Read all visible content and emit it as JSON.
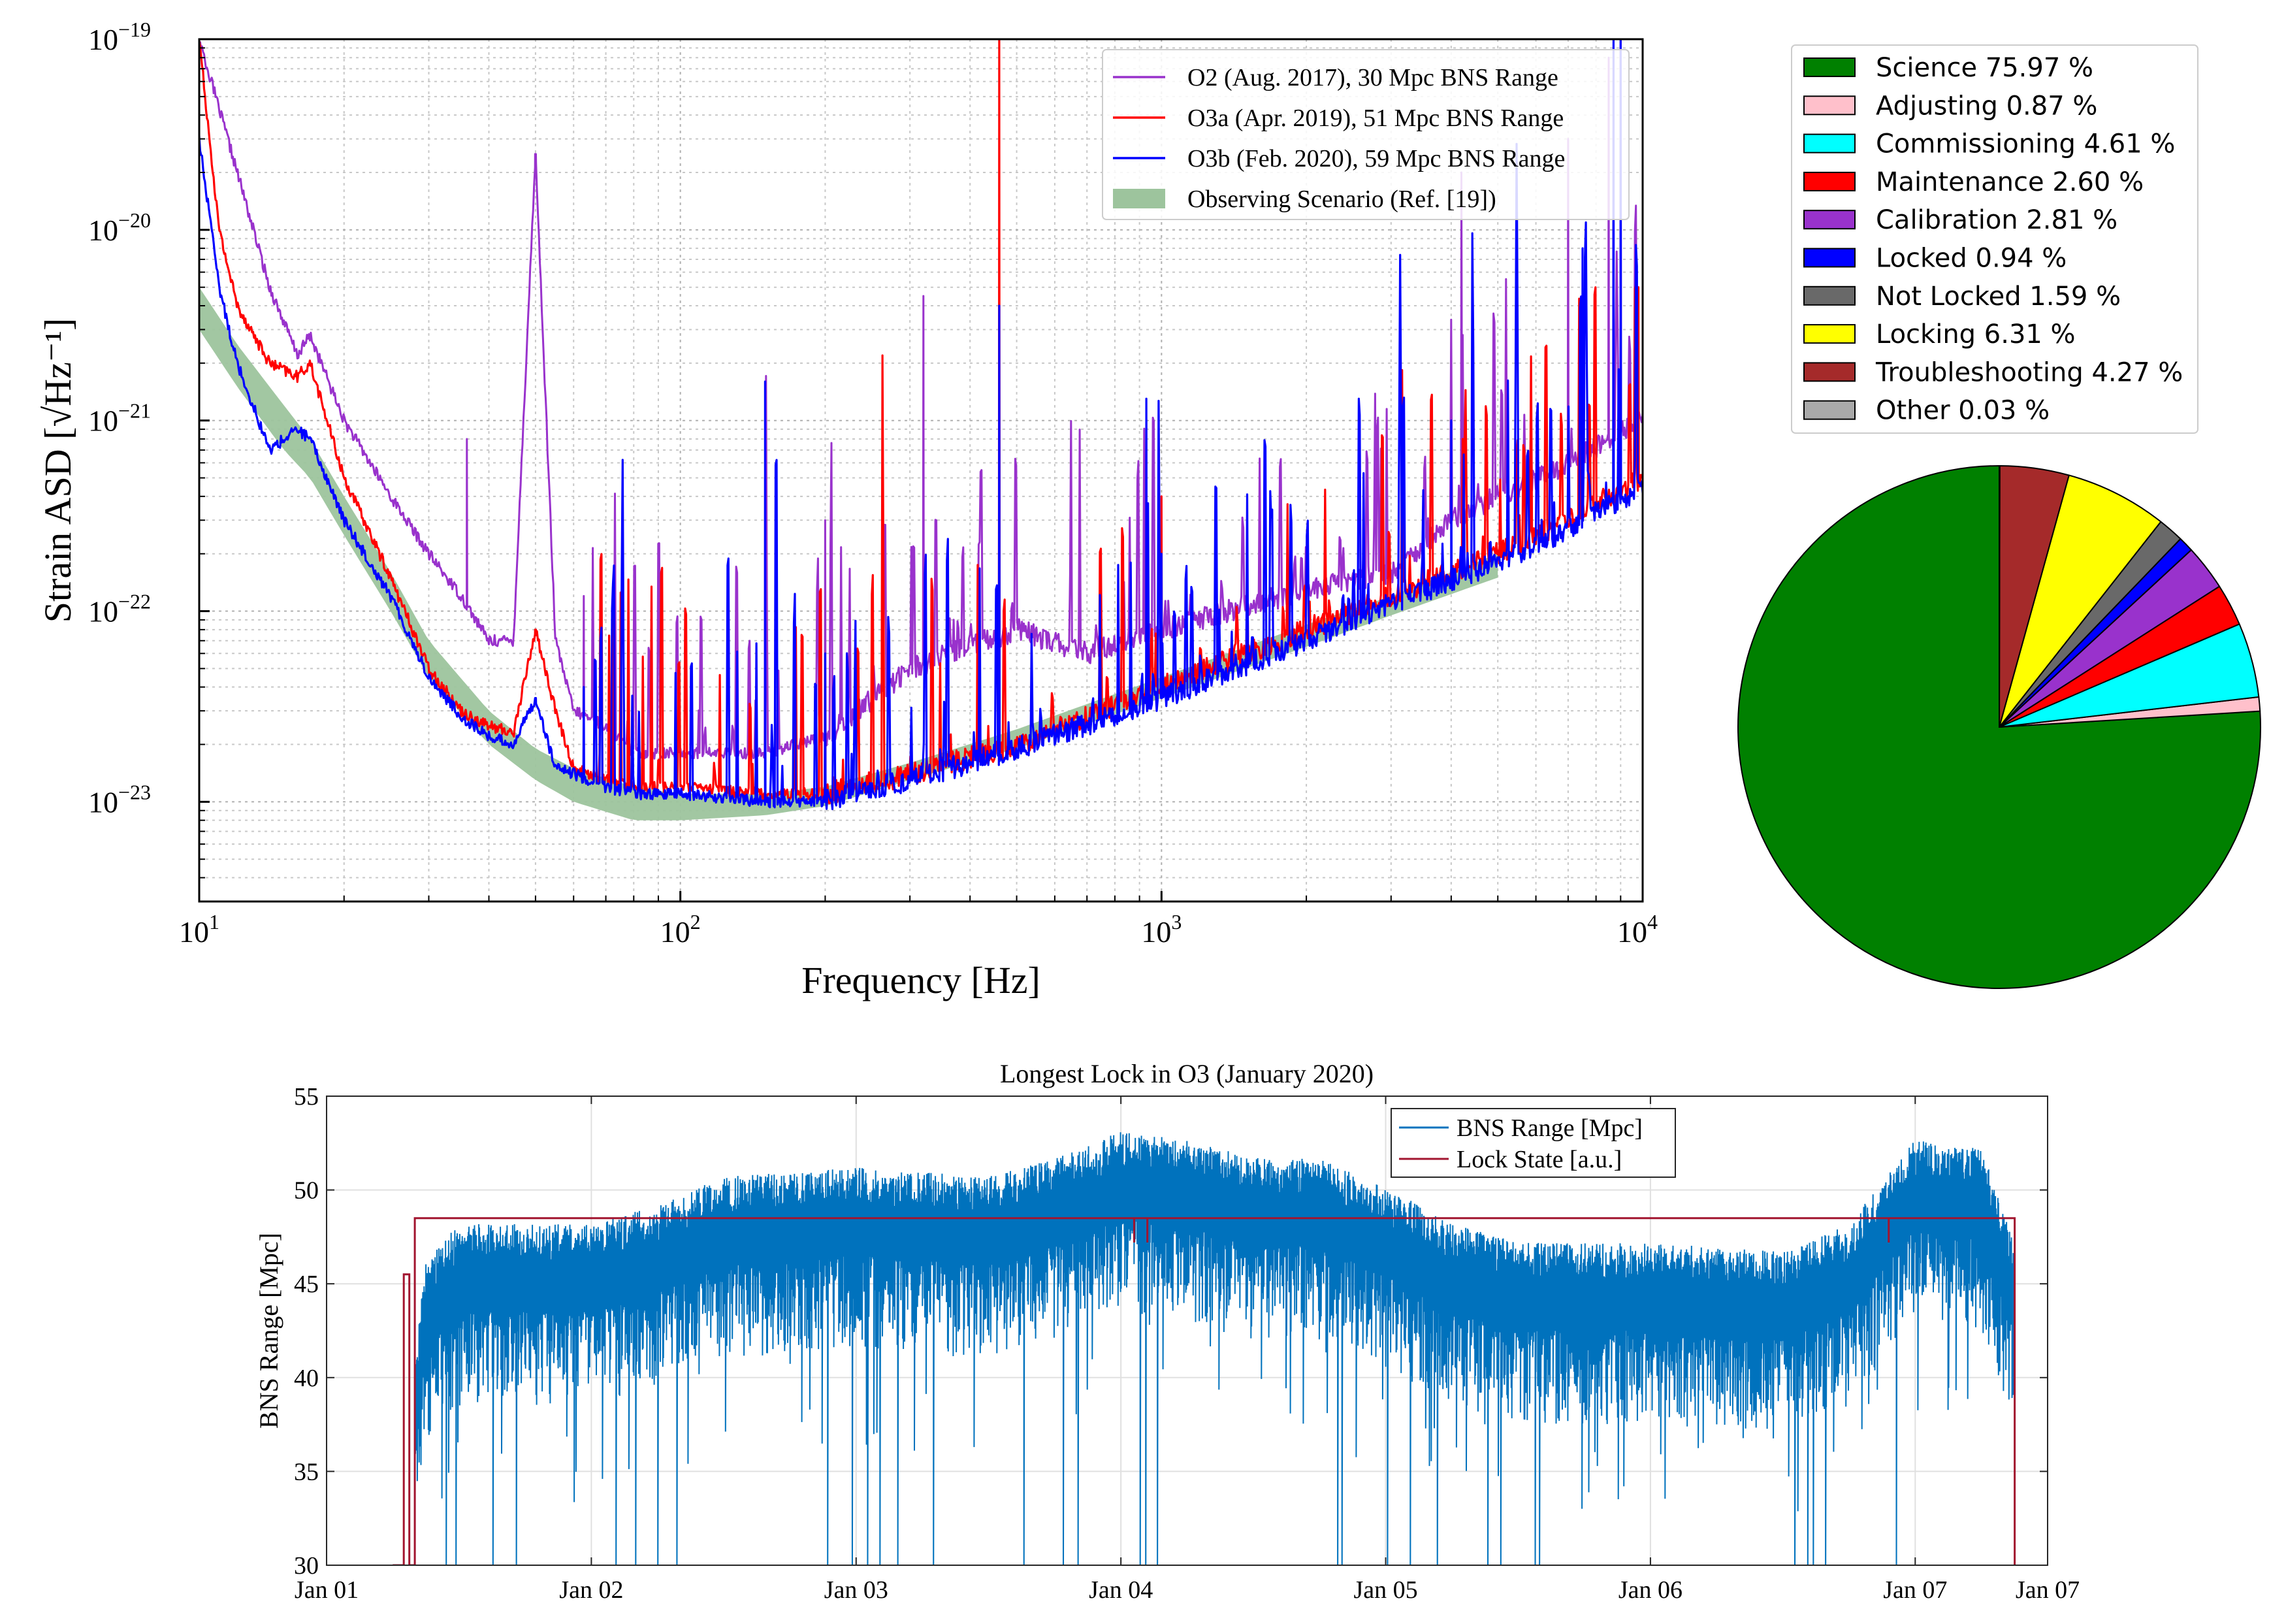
{
  "charts": [
    {
      "type": "line",
      "xlabel": "Frequency [Hz]",
      "ylabel": "Strain ASD [√Hz⁻¹]",
      "xscale": "log",
      "yscale": "log",
      "xlim": [
        10,
        10000
      ],
      "ylim": [
        3e-24,
        1e-19
      ],
      "xticks": [
        {
          "value": 10,
          "base": "10",
          "exp": "1"
        },
        {
          "value": 100,
          "base": "10",
          "exp": "2"
        },
        {
          "value": 1000,
          "base": "10",
          "exp": "3"
        },
        {
          "value": 10000,
          "base": "10",
          "exp": "4"
        }
      ],
      "yticks": [
        {
          "value": 1e-23,
          "base": "10",
          "exp": "−23"
        },
        {
          "value": 1e-22,
          "base": "10",
          "exp": "−22"
        },
        {
          "value": 1e-21,
          "base": "10",
          "exp": "−21"
        },
        {
          "value": 1e-20,
          "base": "10",
          "exp": "−20"
        },
        {
          "value": 1e-19,
          "base": "10",
          "exp": "−19"
        }
      ],
      "grid": true,
      "legend_position": "top-right",
      "series": [
        {
          "name": "O2 (Aug. 2017), 30 Mpc BNS Range",
          "color": "#9932cc",
          "x": [
            10,
            12,
            14,
            16,
            17,
            20,
            25,
            30,
            35,
            40,
            45,
            50,
            55,
            60,
            70,
            80,
            100,
            150,
            200,
            300,
            500,
            700,
            1000,
            2000,
            3000,
            4000,
            5000,
            7000,
            10000
          ],
          "y": [
            1e-19,
            2e-20,
            5e-21,
            2.2e-21,
            2.8e-21,
            1e-21,
            4e-22,
            2e-22,
            1.2e-22,
            7e-23,
            7e-23,
            2.5e-20,
            7e-23,
            3e-23,
            2.5e-23,
            1.8e-23,
            1.8e-23,
            1.8e-23,
            2.2e-23,
            5e-23,
            8e-23,
            6e-23,
            8e-23,
            1.3e-22,
            1.6e-22,
            3e-22,
            4e-22,
            6e-22,
            1e-21
          ]
        },
        {
          "name": "O3a (Apr. 2019), 51 Mpc BNS Range",
          "color": "#ff0000",
          "x": [
            10,
            11,
            12,
            14,
            16,
            17,
            20,
            25,
            30,
            35,
            40,
            45,
            50,
            55,
            60,
            70,
            80,
            100,
            150,
            200,
            300,
            500,
            1000,
            2000,
            3000,
            5000,
            7000,
            10000
          ],
          "y": [
            1e-19,
            1e-20,
            4e-21,
            2e-21,
            1.7e-21,
            2e-21,
            5e-22,
            1.5e-22,
            5e-23,
            3e-23,
            2.5e-23,
            2.3e-23,
            8e-23,
            3e-23,
            1.5e-23,
            1.3e-23,
            1.2e-23,
            1.2e-23,
            1.1e-23,
            1.1e-23,
            1.4e-23,
            2e-23,
            4e-23,
            8e-23,
            1.2e-22,
            2e-22,
            3e-22,
            5e-22
          ]
        },
        {
          "name": "O3b (Feb. 2020), 59 Mpc BNS Range",
          "color": "#0000ff",
          "x": [
            10,
            11,
            12,
            14,
            16,
            17,
            20,
            25,
            30,
            35,
            40,
            45,
            50,
            55,
            60,
            70,
            80,
            100,
            150,
            200,
            300,
            500,
            1000,
            2000,
            3000,
            5000,
            7000,
            10000
          ],
          "y": [
            3e-20,
            5e-21,
            2e-21,
            7e-22,
            9e-22,
            8e-22,
            3e-22,
            1.2e-22,
            4.5e-23,
            2.8e-23,
            2.2e-23,
            2e-23,
            3.5e-23,
            1.5e-23,
            1.4e-23,
            1.2e-23,
            1.1e-23,
            1.1e-23,
            1e-23,
            1e-23,
            1.3e-23,
            1.9e-23,
            3.5e-23,
            7e-23,
            1.1e-22,
            1.8e-22,
            2.7e-22,
            4.5e-22
          ]
        },
        {
          "name": "Observing Scenario (Ref. [19])",
          "color": "#9dc49d",
          "style": "band",
          "x": [
            10,
            12,
            15,
            17,
            20,
            25,
            30,
            40,
            50,
            60,
            80,
            100,
            150,
            200,
            300,
            500,
            1000,
            2000,
            3000,
            5000
          ],
          "y_low": [
            3e-21,
            1.5e-21,
            7e-22,
            5e-22,
            2.5e-22,
            1e-22,
            4.5e-23,
            2e-23,
            1.3e-23,
            1e-23,
            8e-24,
            8e-24,
            8.5e-24,
            9.5e-24,
            1.3e-23,
            1.9e-23,
            3.5e-23,
            6.5e-23,
            9.5e-23,
            1.5e-22
          ],
          "y_high": [
            5e-21,
            2.5e-21,
            1.2e-21,
            8e-22,
            4e-22,
            1.6e-22,
            7e-23,
            3e-23,
            1.9e-23,
            1.5e-23,
            1.2e-23,
            1.1e-23,
            1.1e-23,
            1.2e-23,
            1.6e-23,
            2.4e-23,
            4.5e-23,
            8.5e-23,
            1.2e-22,
            2e-22
          ]
        }
      ]
    },
    {
      "type": "pie",
      "legend_position": "top",
      "start_angle_deg": 90,
      "direction": "counterclockwise",
      "slices": [
        {
          "label": "Science 75.97 %",
          "value": 75.97,
          "color": "#008000"
        },
        {
          "label": "Adjusting 0.87 %",
          "value": 0.87,
          "color": "#ffc0cb"
        },
        {
          "label": "Commissioning 4.61 %",
          "value": 4.61,
          "color": "#00ffff"
        },
        {
          "label": "Maintenance 2.60 %",
          "value": 2.6,
          "color": "#ff0000"
        },
        {
          "label": "Calibration 2.81 %",
          "value": 2.81,
          "color": "#9932cc"
        },
        {
          "label": "Locked 0.94 %",
          "value": 0.94,
          "color": "#0000ff"
        },
        {
          "label": "Not Locked 1.59 %",
          "value": 1.59,
          "color": "#696969"
        },
        {
          "label": "Locking 6.31 %",
          "value": 6.31,
          "color": "#ffff00"
        },
        {
          "label": "Troubleshooting 4.27 %",
          "value": 4.27,
          "color": "#a52a2a"
        },
        {
          "label": "Other 0.03 %",
          "value": 0.03,
          "color": "#a9a9a9"
        }
      ]
    },
    {
      "type": "line",
      "title": "Longest Lock in O3 (January 2020)",
      "ylabel": "BNS Range [Mpc]",
      "xlim": [
        "2020-01-01",
        "2020-01-07 12:00"
      ],
      "ylim": [
        30,
        55
      ],
      "xticks": [
        "Jan 01",
        "Jan 02",
        "Jan 03",
        "Jan 04",
        "Jan 05",
        "Jan 06",
        "Jan 07",
        "Jan 07"
      ],
      "yticks": [
        30,
        35,
        40,
        45,
        50,
        55
      ],
      "grid": true,
      "legend_position": "top-right",
      "series": [
        {
          "name": "BNS Range [Mpc]",
          "color": "#0072bd",
          "x": [
            "2020-01-01 08:00",
            "2020-01-01 09:00",
            "2020-01-01 12:00",
            "2020-01-02 00:00",
            "2020-01-02 06:00",
            "2020-01-02 12:00",
            "2020-01-03 00:00",
            "2020-01-03 12:00",
            "2020-01-03 18:00",
            "2020-01-04 00:00",
            "2020-01-04 06:00",
            "2020-01-04 12:00",
            "2020-01-04 18:00",
            "2020-01-05 00:00",
            "2020-01-05 06:00",
            "2020-01-05 12:00",
            "2020-01-06 00:00",
            "2020-01-06 12:00",
            "2020-01-06 18:00",
            "2020-01-07 00:00",
            "2020-01-07 06:00",
            "2020-01-07 09:00"
          ],
          "y": [
            38,
            43,
            45,
            45,
            46,
            47.5,
            48,
            47.5,
            48.5,
            50,
            49.5,
            48.5,
            48.5,
            47,
            45,
            44,
            44,
            43.5,
            45,
            49.5,
            49,
            44
          ]
        },
        {
          "name": "Lock State [a.u.]",
          "color": "#a2142f",
          "x": [
            "2020-01-01 06:00",
            "2020-01-01 07:00",
            "2020-01-01 07:30",
            "2020-01-01 08:00",
            "2020-01-07 09:00",
            "2020-01-07 09:01"
          ],
          "y": [
            30,
            45.5,
            30,
            48.5,
            48.5,
            30
          ]
        }
      ]
    }
  ]
}
